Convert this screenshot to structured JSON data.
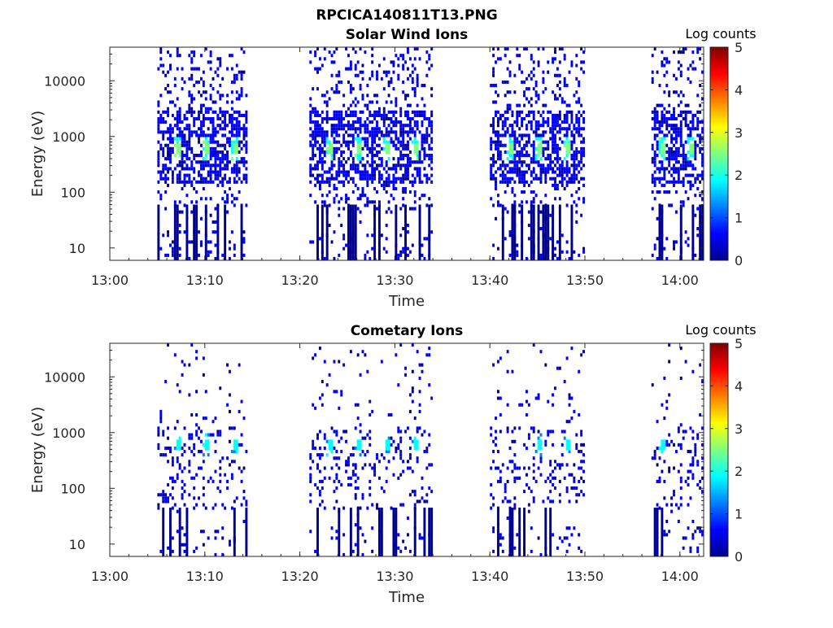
{
  "figure_title": "RPCICA140811T13.PNG",
  "colormap": [
    "#00008f",
    "#0000ff",
    "#0080ff",
    "#00ffff",
    "#80ff80",
    "#ffff00",
    "#ff8000",
    "#ff0000",
    "#800000"
  ],
  "chart_data": [
    {
      "type": "heatmap",
      "title": "Solar Wind Ions",
      "xlabel": "Time",
      "ylabel": "Energy (eV)",
      "x_ticks": [
        "13:00",
        "13:10",
        "13:20",
        "13:30",
        "13:40",
        "13:50",
        "14:00"
      ],
      "y_ticks": [
        "10",
        "100",
        "1000",
        "10000"
      ],
      "y_scale": "log",
      "ylim": [
        6,
        40000
      ],
      "xlim": [
        "13:00",
        "14:02:30"
      ],
      "colorbar": {
        "label": "Log counts",
        "ticks": [
          "0",
          "1",
          "2",
          "3",
          "4",
          "5"
        ],
        "range": [
          0,
          5
        ]
      },
      "active_intervals": [
        [
          "13:05",
          "13:14:30"
        ],
        [
          "13:21",
          "13:34"
        ],
        [
          "13:40",
          "13:50"
        ],
        [
          "13:57",
          "14:02:30"
        ]
      ],
      "peak_energy_ev": 600,
      "peak_log_counts": 2.3,
      "peak_times": [
        "13:07",
        "13:10",
        "13:13",
        "13:23",
        "13:26",
        "13:29",
        "13:32",
        "13:42",
        "13:45",
        "13:48",
        "13:58",
        "14:01"
      ]
    },
    {
      "type": "heatmap",
      "title": "Cometary Ions",
      "xlabel": "Time",
      "ylabel": "Energy (eV)",
      "x_ticks": [
        "13:00",
        "13:10",
        "13:20",
        "13:30",
        "13:40",
        "13:50",
        "14:00"
      ],
      "y_ticks": [
        "10",
        "100",
        "1000",
        "10000"
      ],
      "y_scale": "log",
      "ylim": [
        6,
        40000
      ],
      "xlim": [
        "13:00",
        "14:02:30"
      ],
      "colorbar": {
        "label": "Log counts",
        "ticks": [
          "0",
          "1",
          "2",
          "3",
          "4",
          "5"
        ],
        "range": [
          0,
          5
        ]
      },
      "active_intervals": [
        [
          "13:05",
          "13:14:30"
        ],
        [
          "13:21",
          "13:34"
        ],
        [
          "13:40",
          "13:50"
        ],
        [
          "13:57",
          "14:02:30"
        ]
      ],
      "peak_energy_ev": 600,
      "peak_log_counts": 1.8,
      "peak_times": [
        "13:07",
        "13:10",
        "13:13",
        "13:23",
        "13:26",
        "13:29",
        "13:32",
        "13:45",
        "13:48",
        "13:58"
      ]
    }
  ]
}
